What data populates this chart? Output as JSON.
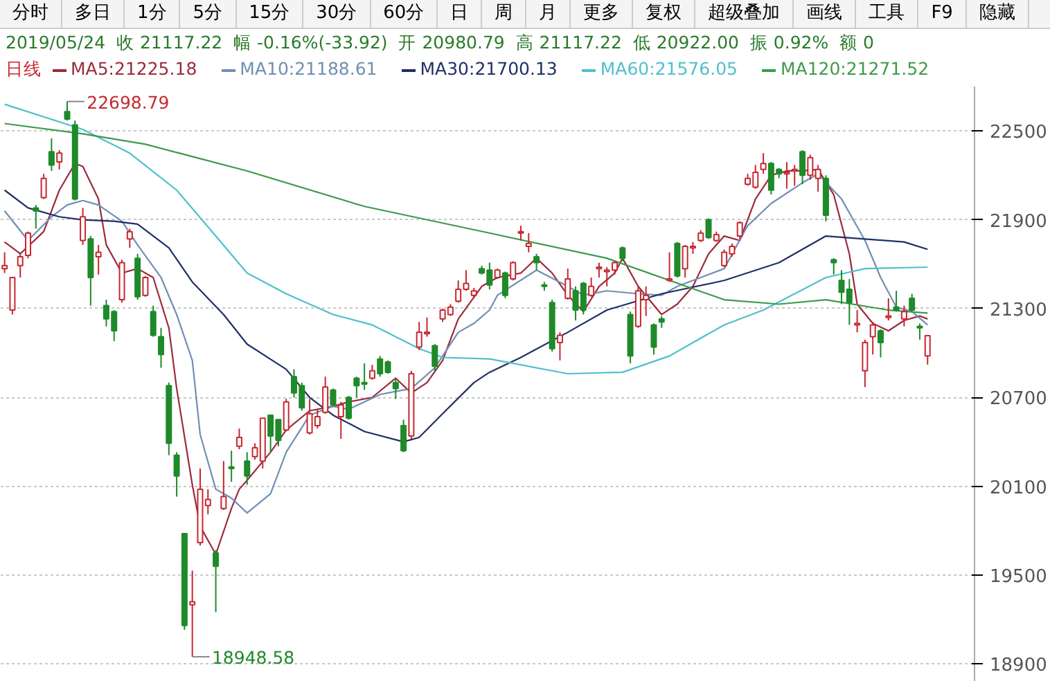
{
  "chart_data": {
    "type": "candlestick",
    "title": "2019/05/24  收 21117.22  幅 -0.16%(-33.92)  开 20980.79  高 21117.22  低 20922.00  振 0.92%  额 0",
    "legend_title": "日线",
    "annotations": [
      "分时",
      "多日",
      "1分",
      "5分",
      "15分",
      "30分",
      "60分",
      "日",
      "周",
      "月",
      "更多",
      "复权",
      "超级叠加",
      "画线",
      "工具",
      "F9",
      "隐藏",
      "22698.79",
      "18948.58"
    ],
    "categories": [
      null,
      null,
      null,
      null,
      null,
      null,
      null,
      null,
      null,
      null,
      null,
      null,
      null,
      null,
      null,
      null,
      null,
      null,
      null,
      null,
      null,
      null,
      null,
      null,
      null,
      null,
      null,
      null,
      null,
      null,
      null,
      null,
      null,
      null,
      null,
      null,
      null,
      null,
      null,
      null,
      null,
      null,
      null,
      null,
      null,
      null,
      null,
      null,
      null,
      null,
      null,
      null,
      null,
      null,
      null,
      null,
      null,
      null,
      null,
      null,
      null,
      null,
      null,
      null,
      null,
      null,
      null,
      null,
      null,
      null,
      null,
      null,
      null,
      null,
      null,
      null,
      null,
      null,
      null,
      null,
      null,
      null,
      null,
      null,
      null,
      null,
      null,
      null,
      null,
      null,
      null,
      null,
      null,
      null,
      null,
      null,
      null,
      null,
      null,
      null,
      null,
      null,
      null,
      null,
      null,
      null,
      null,
      null,
      null,
      null,
      null,
      null,
      null,
      null,
      null,
      null,
      null,
      null,
      null
    ],
    "ohlc": [
      [
        21570,
        21680,
        21540,
        21590
      ],
      [
        21290,
        21510,
        21260,
        21510
      ],
      [
        21590,
        21680,
        21510,
        21650
      ],
      [
        21660,
        21820,
        21640,
        21810
      ],
      [
        21980,
        22000,
        21840,
        21960
      ],
      [
        22050,
        22210,
        22040,
        22180
      ],
      [
        22360,
        22450,
        22230,
        22270
      ],
      [
        22290,
        22370,
        22240,
        22350
      ],
      [
        22630,
        22698.79,
        22570,
        22580
      ],
      [
        22540,
        22570,
        22030,
        22040
      ],
      [
        21760,
        21980,
        21730,
        21920
      ],
      [
        21770,
        21790,
        21320,
        21510
      ],
      [
        21650,
        21730,
        21530,
        21680
      ],
      [
        21320,
        21360,
        21180,
        21230
      ],
      [
        21280,
        21290,
        21080,
        21150
      ],
      [
        21360,
        21630,
        21340,
        21610
      ],
      [
        21770,
        21840,
        21710,
        21820
      ],
      [
        21640,
        21670,
        21360,
        21380
      ],
      [
        21390,
        21520,
        21380,
        21510
      ],
      [
        21280,
        21320,
        21110,
        21120
      ],
      [
        21110,
        21170,
        20900,
        20990
      ],
      [
        20780,
        20800,
        20310,
        20390
      ],
      [
        20310,
        20330,
        20030,
        20170
      ],
      [
        19780,
        19780,
        19130,
        19160
      ],
      [
        19300,
        19530,
        18948.58,
        19320
      ],
      [
        19720,
        20220,
        19700,
        20080
      ],
      [
        19970,
        20080,
        19910,
        20010
      ],
      [
        19650,
        19670,
        19250,
        19560
      ],
      [
        19950,
        20270,
        19940,
        20030
      ],
      [
        20230,
        20340,
        20130,
        20220
      ],
      [
        20370,
        20490,
        20350,
        20430
      ],
      [
        20270,
        20330,
        20110,
        20170
      ],
      [
        20300,
        20390,
        20280,
        20360
      ],
      [
        20270,
        20560,
        20220,
        20560
      ],
      [
        20580,
        20580,
        20330,
        20440
      ],
      [
        20550,
        20550,
        20370,
        20410
      ],
      [
        20480,
        20690,
        20470,
        20670
      ],
      [
        20840,
        20890,
        20700,
        20730
      ],
      [
        20780,
        20800,
        20610,
        20630
      ],
      [
        20460,
        20690,
        20450,
        20590
      ],
      [
        20510,
        20620,
        20490,
        20570
      ],
      [
        20600,
        20840,
        20590,
        20770
      ],
      [
        20750,
        20760,
        20640,
        20650
      ],
      [
        20570,
        20670,
        20420,
        20650
      ],
      [
        20700,
        20710,
        20550,
        20560
      ],
      [
        20830,
        20840,
        20700,
        20780
      ],
      [
        20800,
        20930,
        20750,
        20790
      ],
      [
        20830,
        20920,
        20820,
        20880
      ],
      [
        20960,
        20980,
        20840,
        20860
      ],
      [
        20940,
        20950,
        20860,
        20870
      ],
      [
        20800,
        20830,
        20690,
        20760
      ],
      [
        20510,
        20550,
        20330,
        20340
      ],
      [
        20440,
        20880,
        20420,
        20860
      ],
      [
        21040,
        21210,
        21020,
        21140
      ],
      [
        21130,
        21240,
        21110,
        21140
      ],
      [
        21050,
        21060,
        20870,
        20910
      ],
      [
        21230,
        21300,
        21210,
        21290
      ],
      [
        21260,
        21330,
        21250,
        21310
      ],
      [
        21350,
        21490,
        21340,
        21430
      ],
      [
        21430,
        21560,
        21420,
        21470
      ],
      [
        21390,
        21440,
        21370,
        21420
      ],
      [
        21570,
        21590,
        21530,
        21540
      ],
      [
        21560,
        21610,
        21430,
        21460
      ],
      [
        21510,
        21570,
        21500,
        21560
      ],
      [
        21540,
        21550,
        21370,
        21390
      ],
      [
        21500,
        21620,
        21490,
        21610
      ],
      [
        21810,
        21860,
        21760,
        21820
      ],
      [
        21720,
        21810,
        21680,
        21740
      ],
      [
        21650,
        21670,
        21560,
        21610
      ],
      [
        21460,
        21480,
        21420,
        21450
      ],
      [
        21340,
        21360,
        21010,
        21030
      ],
      [
        21070,
        21140,
        20950,
        21120
      ],
      [
        21370,
        21570,
        21360,
        21500
      ],
      [
        21420,
        21450,
        21220,
        21290
      ],
      [
        21470,
        21480,
        21260,
        21290
      ],
      [
        21390,
        21510,
        21380,
        21450
      ],
      [
        21570,
        21610,
        21510,
        21580
      ],
      [
        21550,
        21580,
        21450,
        21560
      ],
      [
        21560,
        21620,
        21530,
        21610
      ],
      [
        21710,
        21720,
        21620,
        21640
      ],
      [
        21260,
        21280,
        20930,
        20980
      ],
      [
        21180,
        21450,
        21170,
        21420
      ],
      [
        21360,
        21450,
        21250,
        21390
      ],
      [
        21190,
        21200,
        20990,
        21040
      ],
      [
        21230,
        21250,
        21170,
        21210
      ],
      [
        21490,
        21680,
        21480,
        21500
      ],
      [
        21740,
        21750,
        21510,
        21520
      ],
      [
        21570,
        21730,
        21510,
        21720
      ],
      [
        21710,
        21750,
        21670,
        21720
      ],
      [
        21760,
        21830,
        21750,
        21810
      ],
      [
        21900,
        21910,
        21770,
        21780
      ],
      [
        21760,
        21820,
        21750,
        21800
      ],
      [
        21590,
        21700,
        21580,
        21680
      ],
      [
        21670,
        21740,
        21650,
        21720
      ],
      [
        21790,
        21890,
        21770,
        21880
      ],
      [
        22140,
        22210,
        22130,
        22180
      ],
      [
        22120,
        22270,
        22110,
        22220
      ],
      [
        22240,
        22350,
        22210,
        22280
      ],
      [
        22280,
        22290,
        22070,
        22100
      ],
      [
        22240,
        22250,
        22180,
        22210
      ],
      [
        22210,
        22290,
        22110,
        22220
      ],
      [
        22230,
        22270,
        22130,
        22240
      ],
      [
        22360,
        22370,
        22140,
        22200
      ],
      [
        22200,
        22340,
        22170,
        22320
      ],
      [
        22180,
        22270,
        22090,
        22240
      ],
      [
        22180,
        22200,
        21890,
        21930
      ],
      [
        21630,
        21640,
        21530,
        21610
      ],
      [
        21490,
        21560,
        21330,
        21410
      ],
      [
        21430,
        21500,
        21190,
        21340
      ],
      [
        21190,
        21290,
        21140,
        21200
      ],
      [
        20880,
        21090,
        20770,
        21070
      ],
      [
        21110,
        21210,
        20990,
        21190
      ],
      [
        21150,
        21160,
        20970,
        21070
      ],
      [
        21240,
        21370,
        21220,
        21250
      ],
      [
        21310,
        21420,
        21280,
        21290
      ],
      [
        21230,
        21320,
        21180,
        21280
      ],
      [
        21370,
        21400,
        21280,
        21290
      ],
      [
        21180,
        21200,
        21090,
        21170
      ],
      [
        20980.79,
        21117.22,
        20922.0,
        21117.22
      ]
    ],
    "series": [
      {
        "name": "MA5:21225.18",
        "type": "line",
        "color": "#9c2a3c",
        "values": [
          21750,
          null,
          21670,
          null,
          null,
          21820,
          null,
          22100,
          null,
          22280,
          22260,
          null,
          22040,
          21730,
          null,
          21540,
          null,
          21570,
          null,
          21510,
          null,
          21170,
          20760,
          null,
          20110,
          19830,
          null,
          19640,
          null,
          19950,
          20080,
          20140,
          null,
          null,
          20330,
          null,
          20480,
          null,
          null,
          20610,
          null,
          null,
          20640,
          null,
          20670,
          null,
          null,
          20700,
          null,
          null,
          20830,
          null,
          20730,
          null,
          20800,
          null,
          20950,
          null,
          21230,
          null,
          null,
          21450,
          null,
          21510,
          null,
          null,
          21540,
          null,
          21640,
          null,
          21540,
          null,
          21390,
          null,
          21280,
          null,
          21450,
          null,
          21540,
          21640,
          null,
          21450,
          null,
          null,
          21260,
          null,
          21330,
          null,
          21450,
          null,
          21670,
          null,
          21790,
          null,
          21760,
          null,
          22040,
          null,
          22200,
          null,
          22230,
          null,
          22230,
          null,
          22240,
          null,
          22070,
          null,
          21670,
          21330,
          null,
          21200,
          null,
          21150,
          null,
          21220,
          null,
          21250,
          21230
        ]
      },
      {
        "name": "MA10:21188.61",
        "type": "line",
        "color": "#6f8fb3",
        "values": [
          21960,
          null,
          null,
          21760,
          null,
          null,
          21920,
          null,
          22000,
          null,
          22030,
          null,
          22000,
          null,
          null,
          21890,
          null,
          21730,
          null,
          null,
          21510,
          null,
          21260,
          null,
          20950,
          20450,
          null,
          20080,
          null,
          20020,
          null,
          19920,
          null,
          null,
          20050,
          null,
          20330,
          null,
          null,
          20580,
          null,
          null,
          20640,
          null,
          20620,
          null,
          null,
          null,
          20720,
          null,
          20740,
          null,
          20760,
          null,
          null,
          20900,
          null,
          null,
          21140,
          null,
          21200,
          null,
          21290,
          21390,
          null,
          null,
          null,
          null,
          21560,
          null,
          null,
          null,
          21450,
          null,
          21390,
          null,
          null,
          21420,
          null,
          null,
          null,
          21400,
          null,
          null,
          21390,
          null,
          21450,
          null,
          null,
          null,
          null,
          null,
          21570,
          null,
          null,
          21860,
          null,
          null,
          22010,
          null,
          null,
          null,
          22150,
          null,
          22210,
          null,
          null,
          22040,
          null,
          null,
          21760,
          null,
          21510,
          null,
          21310,
          null,
          21280,
          null,
          21190
        ]
      },
      {
        "name": "MA30:21700.13",
        "type": "line",
        "color": "#1f2f66",
        "values": [
          22100,
          null,
          null,
          21980,
          null,
          null,
          null,
          21920,
          null,
          null,
          21900,
          null,
          null,
          null,
          21890,
          null,
          null,
          21870,
          null,
          null,
          null,
          21710,
          null,
          null,
          21480,
          null,
          null,
          null,
          21260,
          null,
          null,
          21060,
          null,
          null,
          null,
          null,
          20890,
          null,
          null,
          20700,
          null,
          null,
          20580,
          null,
          null,
          null,
          20470,
          null,
          null,
          null,
          null,
          20400,
          null,
          20430,
          null,
          null,
          20590,
          null,
          null,
          null,
          20800,
          null,
          20870,
          null,
          null,
          null,
          20970,
          null,
          null,
          null,
          null,
          null,
          21140,
          null,
          null,
          null,
          null,
          21290,
          null,
          null,
          null,
          null,
          null,
          null,
          21400,
          null,
          null,
          null,
          null,
          null,
          null,
          null,
          21490,
          null,
          null,
          null,
          null,
          null,
          null,
          21610,
          null,
          null,
          null,
          null,
          null,
          21790,
          null,
          null,
          null,
          null,
          21770,
          null,
          null,
          null,
          null,
          21750,
          null,
          null,
          21700
        ]
      },
      {
        "name": "MA60:21576.05",
        "type": "line",
        "color": "#4fc0cc",
        "values": [
          22680,
          null,
          null,
          null,
          null,
          null,
          null,
          null,
          null,
          null,
          22510,
          null,
          null,
          null,
          null,
          null,
          22350,
          null,
          null,
          null,
          null,
          null,
          22100,
          null,
          null,
          null,
          null,
          21790,
          null,
          null,
          null,
          21540,
          null,
          null,
          null,
          null,
          21400,
          null,
          null,
          null,
          null,
          null,
          21260,
          null,
          null,
          null,
          null,
          21190,
          null,
          null,
          null,
          null,
          null,
          21030,
          null,
          null,
          20970,
          null,
          null,
          null,
          null,
          null,
          20960,
          null,
          null,
          null,
          null,
          null,
          null,
          null,
          null,
          null,
          20860,
          null,
          null,
          null,
          null,
          null,
          null,
          20870,
          null,
          null,
          null,
          null,
          null,
          20980,
          null,
          null,
          null,
          null,
          null,
          null,
          21190,
          null,
          null,
          null,
          null,
          21290,
          null,
          null,
          null,
          null,
          null,
          null,
          null,
          21510,
          null,
          null,
          null,
          null,
          21570,
          null,
          null,
          null,
          null,
          null,
          null,
          null,
          21580
        ]
      },
      {
        "name": "MA120:21271.52",
        "type": "line",
        "color": "#3e9a4c",
        "values": [
          22550,
          null,
          null,
          null,
          null,
          null,
          null,
          null,
          null,
          null,
          22480,
          null,
          null,
          null,
          null,
          null,
          null,
          null,
          22410,
          null,
          null,
          null,
          null,
          null,
          null,
          null,
          null,
          null,
          null,
          null,
          null,
          22230,
          null,
          null,
          null,
          null,
          null,
          null,
          null,
          null,
          null,
          null,
          null,
          null,
          null,
          null,
          21990,
          null,
          null,
          null,
          null,
          null,
          null,
          null,
          null,
          null,
          null,
          null,
          null,
          null,
          null,
          null,
          21810,
          null,
          null,
          null,
          null,
          null,
          null,
          null,
          null,
          null,
          null,
          null,
          null,
          null,
          null,
          21640,
          null,
          null,
          null,
          null,
          null,
          null,
          null,
          null,
          null,
          null,
          null,
          null,
          null,
          null,
          21360,
          null,
          null,
          null,
          null,
          null,
          null,
          21330,
          null,
          null,
          null,
          null,
          null,
          21360,
          null,
          null,
          null,
          null,
          null,
          null,
          null,
          21290,
          null,
          null,
          null,
          null,
          21270
        ]
      }
    ],
    "ylim": [
      18780,
      22800
    ],
    "yticks": [
      18900,
      19500,
      20100,
      20700,
      21300,
      21900,
      22500
    ],
    "grid": "y",
    "legend": "top"
  }
}
